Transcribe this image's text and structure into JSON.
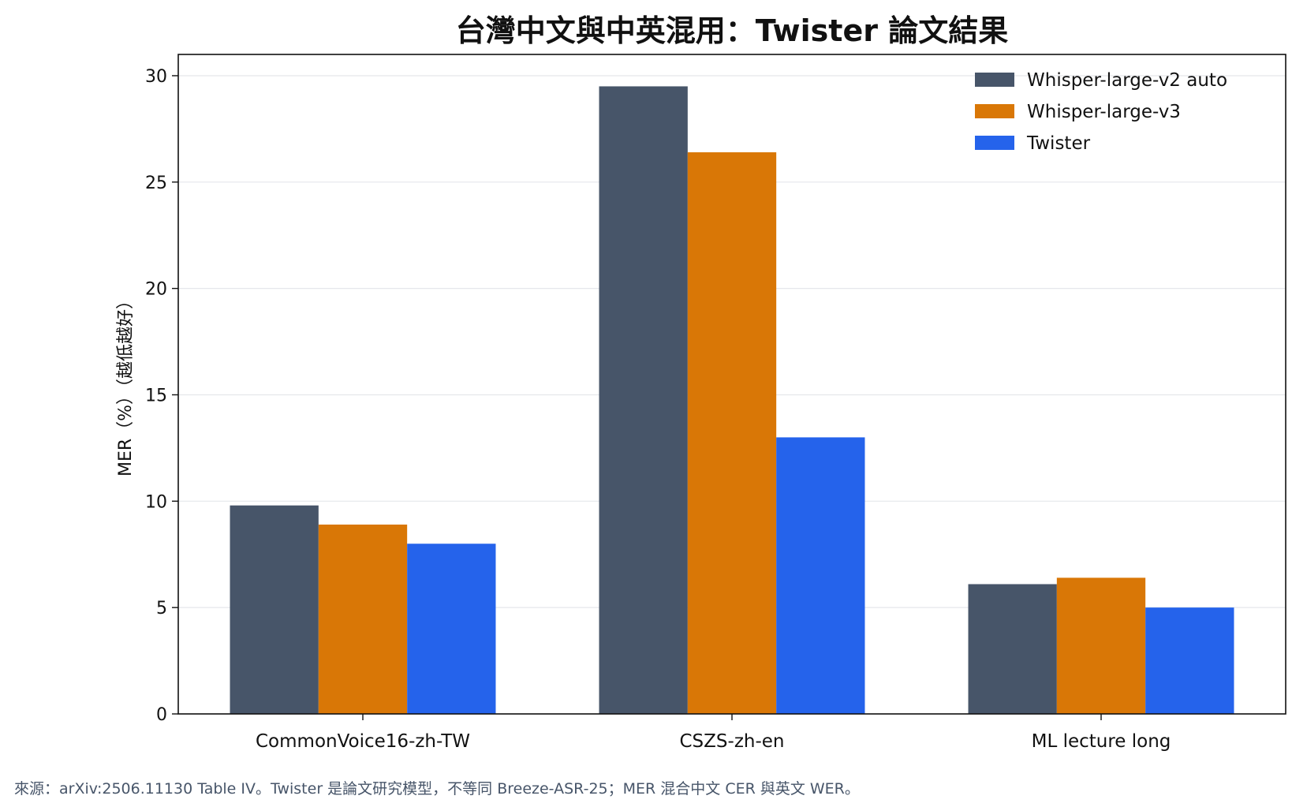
{
  "chart_data": {
    "type": "bar",
    "title": "台灣中文與中英混用：Twister 論文結果",
    "xlabel": "",
    "ylabel": "MER（%）（越低越好）",
    "categories": [
      "CommonVoice16-zh-TW",
      "CSZS-zh-en",
      "ML lecture long"
    ],
    "series": [
      {
        "name": "Whisper-large-v2 auto",
        "color": "#475569",
        "values": [
          9.8,
          29.5,
          6.1
        ]
      },
      {
        "name": "Whisper-large-v3",
        "color": "#d97706",
        "values": [
          8.9,
          26.4,
          6.4
        ]
      },
      {
        "name": "Twister",
        "color": "#2563eb",
        "values": [
          8.0,
          13.0,
          5.0
        ]
      }
    ],
    "ylim": [
      0,
      31
    ],
    "yticks": [
      0,
      5,
      10,
      15,
      20,
      25,
      30
    ],
    "grid": true,
    "legend": "top-right",
    "footnote": "來源：arXiv:2506.11130 Table IV。Twister 是論文研究模型，不等同 Breeze-ASR-25；MER 混合中文 CER 與英文 WER。"
  }
}
